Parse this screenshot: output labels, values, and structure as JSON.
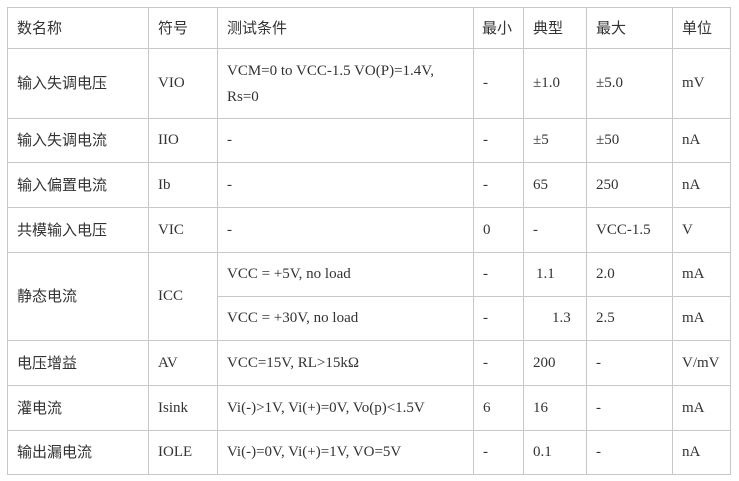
{
  "headers": [
    "数名称",
    "符号",
    "测试条件",
    "最小",
    "典型",
    "最大",
    "单位"
  ],
  "rows": [
    {
      "name": "输入失调电压",
      "symbol": "VIO",
      "condition": "VCM=0  to  VCC-1.5  VO(P)=1.4V,\nRs=0",
      "min": "-",
      "typ": "±1.0",
      "max": "±5.0",
      "unit": "mV"
    },
    {
      "name": "输入失调电流",
      "symbol": "IIO",
      "condition": "-",
      "min": "-",
      "typ": "±5",
      "max": "±50",
      "unit": "nA"
    },
    {
      "name": "输入偏置电流",
      "symbol": "Ib",
      "condition": "-",
      "min": "-",
      "typ": "65",
      "max": "250",
      "unit": "nA"
    },
    {
      "name": "共模输入电压",
      "symbol": "VIC",
      "condition": "-",
      "min": "0",
      "typ": "-",
      "max": "VCC-1.5",
      "unit": "V"
    },
    {
      "name": "静态电流",
      "symbol": "ICC",
      "condition": "VCC  =  +5V,  no  load",
      "min": "-",
      "typ": "1.1",
      "max": "2.0",
      "unit": "mA"
    },
    {
      "condition": "VCC  =  +30V,  no  load",
      "min": "-",
      "typ": "1.3",
      "max": "2.5",
      "unit": "mA"
    },
    {
      "name": "电压增益",
      "symbol": "AV",
      "condition": "VCC=15V,  RL>15kΩ",
      "min": "-",
      "typ": "200",
      "max": "-",
      "unit": "V/mV"
    },
    {
      "name": "灌电流",
      "symbol": "Isink",
      "condition": "Vi(-)>1V,  Vi(+)=0V,  Vo(p)<1.5V",
      "min": "6",
      "typ": "16",
      "max": "-",
      "unit": "mA"
    },
    {
      "name": "输出漏电流",
      "symbol": "IOLE",
      "condition": "Vi(-)=0V,  Vi(+)=1V,  VO=5V",
      "min": "-",
      "typ": "0.1",
      "max": "-",
      "unit": "nA"
    }
  ]
}
